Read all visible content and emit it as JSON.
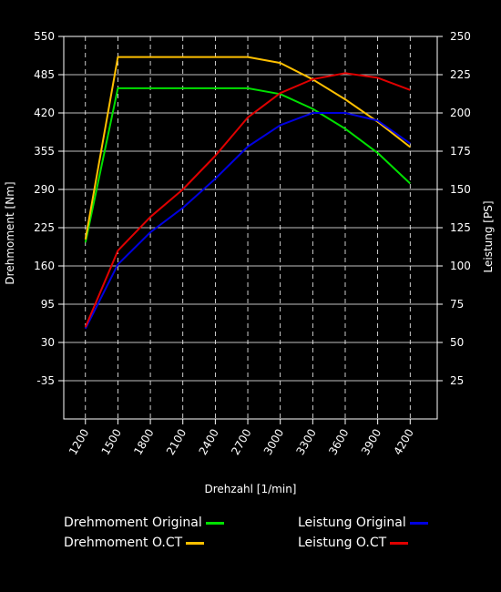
{
  "chart_data": {
    "type": "line",
    "xlabel": "Drehzahl [1/min]",
    "ylabel_left": "Drehmoment [Nm]",
    "ylabel_right": "Leistung [PS]",
    "x_ticks": [
      1200,
      1500,
      1800,
      2100,
      2400,
      2700,
      3000,
      3300,
      3600,
      3900,
      4200
    ],
    "y_left_ticks": [
      550,
      485,
      420,
      355,
      290,
      225,
      160,
      95,
      30,
      -35
    ],
    "y_right_ticks": [
      250,
      225,
      200,
      175,
      150,
      125,
      100,
      75,
      50,
      25
    ],
    "ylim_left": [
      -100,
      550
    ],
    "ylim_right": [
      0,
      250
    ],
    "xlim": [
      1000,
      4450
    ],
    "grid": true,
    "legend_position": "bottom",
    "series": [
      {
        "name": "Drehmoment Original",
        "color": "#00e000",
        "axis": "left",
        "x": [
          1200,
          1500,
          1800,
          2100,
          2400,
          2700,
          3000,
          3300,
          3600,
          3900,
          4200
        ],
        "values": [
          200,
          462,
          462,
          462,
          462,
          462,
          452,
          427,
          393,
          352,
          300
        ]
      },
      {
        "name": "Drehmoment O.CT",
        "color": "#ffc000",
        "axis": "left",
        "x": [
          1200,
          1500,
          1800,
          2100,
          2400,
          2700,
          3000,
          3300,
          3600,
          3900,
          4200
        ],
        "values": [
          205,
          515,
          515,
          515,
          515,
          515,
          505,
          477,
          443,
          405,
          362
        ]
      },
      {
        "name": "Leistung Original",
        "color": "#0000e0",
        "axis": "right",
        "x": [
          1200,
          1500,
          1800,
          2100,
          2400,
          2700,
          3000,
          3300,
          3600,
          3900,
          4200
        ],
        "values": [
          59,
          101,
          122,
          138,
          157,
          178,
          192,
          200,
          200,
          195,
          180
        ]
      },
      {
        "name": "Leistung O.CT",
        "color": "#e00000",
        "axis": "right",
        "x": [
          1200,
          1500,
          1800,
          2100,
          2400,
          2700,
          3000,
          3300,
          3600,
          3900,
          4200
        ],
        "values": [
          60,
          110,
          132,
          150,
          172,
          197,
          213,
          222,
          226,
          223,
          215
        ]
      }
    ]
  }
}
